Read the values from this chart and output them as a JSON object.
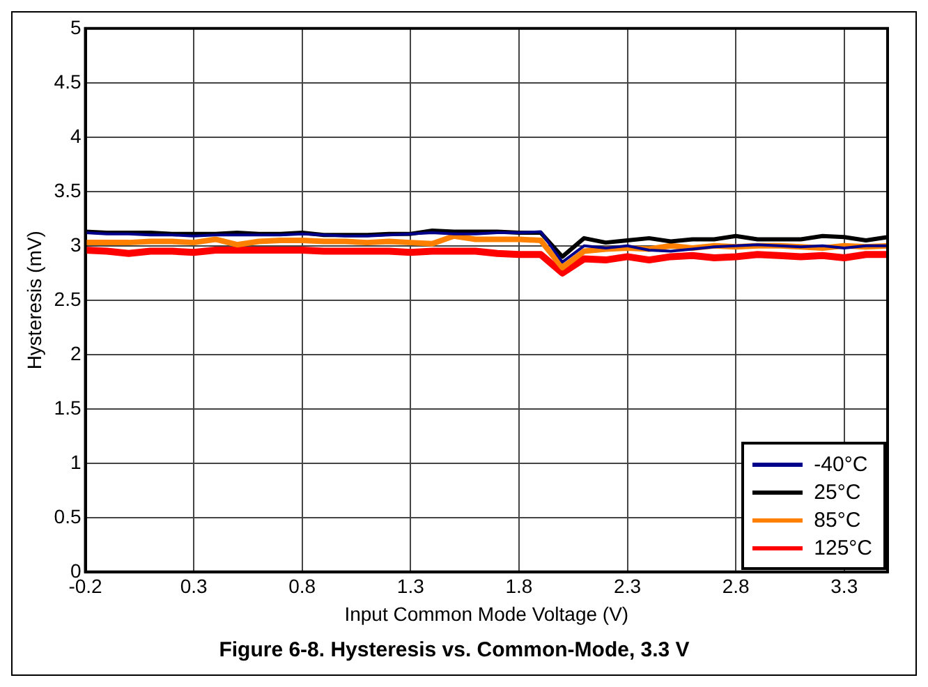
{
  "chart_data": {
    "type": "line",
    "title": "Figure 6-8. Hysteresis vs. Common-Mode, 3.3 V",
    "xlabel": "Input Common Mode Voltage (V)",
    "ylabel": "Hysteresis (mV)",
    "x": [
      -0.2,
      -0.1,
      0,
      0.1,
      0.2,
      0.3,
      0.4,
      0.5,
      0.6,
      0.7,
      0.8,
      0.9,
      1,
      1.1,
      1.2,
      1.3,
      1.4,
      1.5,
      1.6,
      1.7,
      1.8,
      1.9,
      2,
      2.1,
      2.2,
      2.3,
      2.4,
      2.5,
      2.6,
      2.7,
      2.8,
      2.9,
      3,
      3.1,
      3.2,
      3.3,
      3.4,
      3.5
    ],
    "series": [
      {
        "name": "-40°C",
        "color": "#00008b",
        "values": [
          3.12,
          3.11,
          3.11,
          3.1,
          3.1,
          3.09,
          3.1,
          3.1,
          3.1,
          3.1,
          3.11,
          3.1,
          3.09,
          3.09,
          3.1,
          3.11,
          3.12,
          3.11,
          3.11,
          3.12,
          3.12,
          3.13,
          2.85,
          3.0,
          2.98,
          3.0,
          2.96,
          2.95,
          2.97,
          2.99,
          3.0,
          3.01,
          3.0,
          2.99,
          3.0,
          2.98,
          3.0,
          3.0
        ]
      },
      {
        "name": "25°C",
        "color": "#000000",
        "values": [
          3.13,
          3.12,
          3.12,
          3.12,
          3.11,
          3.11,
          3.11,
          3.12,
          3.11,
          3.11,
          3.12,
          3.1,
          3.1,
          3.1,
          3.11,
          3.11,
          3.14,
          3.13,
          3.13,
          3.13,
          3.12,
          3.12,
          2.9,
          3.07,
          3.03,
          3.05,
          3.07,
          3.04,
          3.06,
          3.06,
          3.09,
          3.06,
          3.06,
          3.06,
          3.09,
          3.08,
          3.05,
          3.08
        ]
      },
      {
        "name": "85°C",
        "color": "#ff8000",
        "values": [
          3.03,
          3.03,
          3.03,
          3.04,
          3.04,
          3.03,
          3.06,
          3.01,
          3.04,
          3.05,
          3.05,
          3.04,
          3.04,
          3.03,
          3.04,
          3.03,
          3.02,
          3.09,
          3.06,
          3.06,
          3.06,
          3.05,
          2.8,
          2.95,
          2.97,
          2.98,
          2.97,
          3.0,
          2.98,
          3.0,
          2.99,
          3.0,
          3.0,
          2.99,
          2.98,
          3.0,
          2.99,
          3.0
        ]
      },
      {
        "name": "125°C",
        "color": "#ff0000",
        "values": [
          2.96,
          2.95,
          2.93,
          2.95,
          2.95,
          2.94,
          2.96,
          2.96,
          2.96,
          2.96,
          2.96,
          2.95,
          2.95,
          2.95,
          2.95,
          2.94,
          2.95,
          2.95,
          2.95,
          2.93,
          2.92,
          2.92,
          2.75,
          2.88,
          2.87,
          2.9,
          2.87,
          2.9,
          2.91,
          2.89,
          2.9,
          2.92,
          2.91,
          2.9,
          2.91,
          2.89,
          2.92,
          2.92
        ]
      }
    ],
    "xlim": [
      -0.2,
      3.5
    ],
    "xticks": [
      -0.2,
      0.3,
      0.8,
      1.3,
      1.8,
      2.3,
      2.8,
      3.3
    ],
    "ylim": [
      0,
      5
    ],
    "yticks": [
      0,
      0.5,
      1,
      1.5,
      2,
      2.5,
      3,
      3.5,
      4,
      4.5,
      5
    ],
    "grid": true,
    "legend": "bottom right",
    "marker": "none",
    "line_style": "solid"
  }
}
